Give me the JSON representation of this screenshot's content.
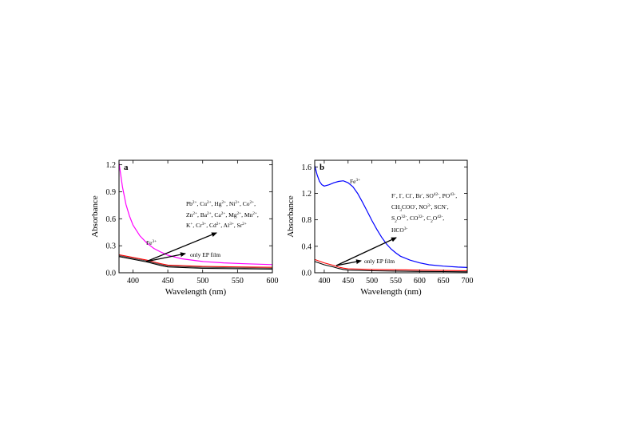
{
  "chart_data": [
    {
      "type": "line",
      "panel_label": "a",
      "xlabel": "Wavelength (nm)",
      "ylabel": "Absorbance",
      "xlim": [
        380,
        600
      ],
      "ylim": [
        0,
        1.25
      ],
      "xticks": [
        "400",
        "450",
        "500",
        "550",
        "600"
      ],
      "yticks": [
        "0.0",
        "0.3",
        "0.6",
        "0.9",
        "1.2"
      ],
      "grid": false,
      "legend": "none",
      "series": [
        {
          "name": "Fe3+",
          "color": "#ff00ff",
          "x": [
            380,
            385,
            390,
            395,
            400,
            410,
            420,
            430,
            440,
            450,
            470,
            500,
            530,
            560,
            600
          ],
          "y": [
            1.22,
            0.95,
            0.76,
            0.63,
            0.53,
            0.41,
            0.33,
            0.27,
            0.23,
            0.195,
            0.155,
            0.125,
            0.11,
            0.1,
            0.09
          ]
        },
        {
          "color": "#ff0000",
          "x": [
            380,
            400,
            420,
            430,
            440,
            450,
            500,
            550,
            600
          ],
          "y": [
            0.2,
            0.17,
            0.14,
            0.12,
            0.1,
            0.085,
            0.07,
            0.065,
            0.06
          ]
        },
        {
          "color": "#000000",
          "x": [
            380,
            400,
            420,
            430,
            440,
            450,
            500,
            550,
            600
          ],
          "y": [
            0.18,
            0.15,
            0.12,
            0.1,
            0.08,
            0.065,
            0.05,
            0.045,
            0.04
          ]
        },
        {
          "color": "#555555",
          "x": [
            380,
            400,
            420,
            430,
            440,
            450,
            500,
            550,
            600
          ],
          "y": [
            0.19,
            0.16,
            0.13,
            0.11,
            0.09,
            0.075,
            0.06,
            0.055,
            0.05
          ]
        }
      ],
      "annotations": {
        "fe_label": "Fe3+",
        "ep_label": "only EP film",
        "ion_lines": [
          "Pb2+, Cu2+, Hg2+, Ni2+, Co2+,",
          "Zn2+, Ba2+, Ca2+, Mg2+, Mn2+,",
          "K+, Cr3+, Cd2+, Al3+, Sr2+"
        ]
      }
    },
    {
      "type": "line",
      "panel_label": "b",
      "xlabel": "Wavelength (nm)",
      "ylabel": "Absorbance",
      "xlim": [
        380,
        700
      ],
      "ylim": [
        0,
        1.7
      ],
      "xticks": [
        "400",
        "450",
        "500",
        "550",
        "600",
        "650",
        "700"
      ],
      "yticks": [
        "0.0",
        "0.4",
        "0.8",
        "1.2",
        "1.6"
      ],
      "grid": false,
      "legend": "none",
      "series": [
        {
          "name": "Fe3+",
          "color": "#0000ff",
          "x": [
            380,
            385,
            390,
            395,
            400,
            410,
            420,
            430,
            440,
            450,
            460,
            470,
            480,
            490,
            500,
            510,
            520,
            530,
            540,
            550,
            560,
            580,
            600,
            620,
            650,
            680,
            700
          ],
          "y": [
            1.62,
            1.48,
            1.38,
            1.33,
            1.31,
            1.33,
            1.36,
            1.38,
            1.39,
            1.36,
            1.3,
            1.2,
            1.07,
            0.93,
            0.79,
            0.66,
            0.54,
            0.44,
            0.36,
            0.3,
            0.25,
            0.19,
            0.15,
            0.12,
            0.1,
            0.085,
            0.08
          ]
        },
        {
          "color": "#ff0000",
          "x": [
            380,
            400,
            420,
            430,
            440,
            450,
            500,
            550,
            600,
            650,
            700
          ],
          "y": [
            0.2,
            0.15,
            0.11,
            0.085,
            0.07,
            0.06,
            0.05,
            0.045,
            0.04,
            0.035,
            0.03
          ]
        },
        {
          "color": "#000000",
          "x": [
            380,
            400,
            420,
            430,
            440,
            450,
            500,
            550,
            600,
            650,
            700
          ],
          "y": [
            0.17,
            0.12,
            0.085,
            0.065,
            0.05,
            0.04,
            0.03,
            0.025,
            0.02,
            0.018,
            0.015
          ]
        }
      ],
      "annotations": {
        "fe_label": "Fe3+",
        "ep_label": "only EP film",
        "ion_lines": [
          "F-, I-, Cl-, Br-, SO42-, PO43-,",
          "CH3COO-, NO3-, SCN-,",
          "S2O32-, CO32-, C2O42-,",
          "HCO3-"
        ]
      }
    }
  ]
}
